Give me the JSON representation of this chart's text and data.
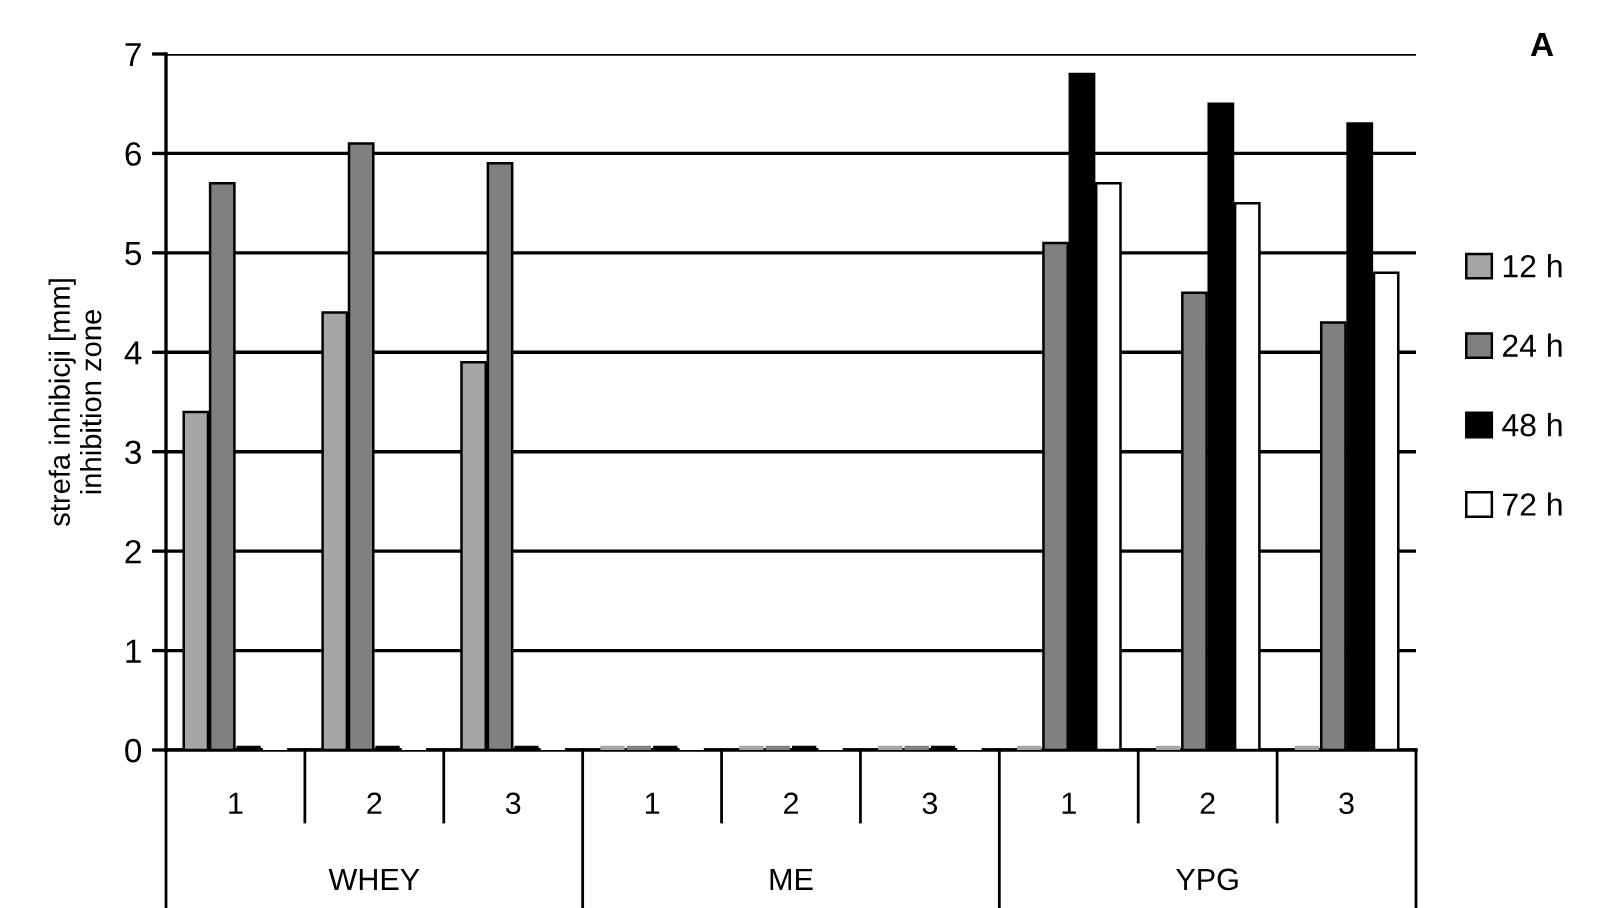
{
  "chart_data": {
    "type": "bar",
    "title": "A",
    "ylabel": "strefa inhibicji [mm]\ninhibition zone",
    "categories": [
      "1",
      "2",
      "3",
      "1",
      "2",
      "3",
      "1",
      "2",
      "3"
    ],
    "annotations": [
      "WHEY",
      "ME",
      "YPG"
    ],
    "series": [
      {
        "name": "12 h",
        "color": "#a6a6a6",
        "values": [
          3.4,
          4.4,
          3.9,
          0,
          0,
          0,
          0,
          0,
          0
        ]
      },
      {
        "name": "24 h",
        "color": "#808080",
        "values": [
          5.7,
          6.1,
          5.9,
          0,
          0,
          0,
          5.1,
          4.6,
          4.3
        ]
      },
      {
        "name": "48 h",
        "color": "#000000",
        "values": [
          0,
          0,
          0,
          0,
          0,
          0,
          6.8,
          6.5,
          6.3
        ]
      },
      {
        "name": "72 h",
        "color": "#ffffff",
        "values": [
          0,
          0,
          0,
          0,
          0,
          0,
          5.7,
          5.5,
          4.8
        ]
      }
    ],
    "ylim": [
      0,
      7
    ],
    "yticks": [
      0,
      1,
      2,
      3,
      4,
      5,
      6,
      7
    ],
    "grid": "y",
    "legend": "right"
  }
}
